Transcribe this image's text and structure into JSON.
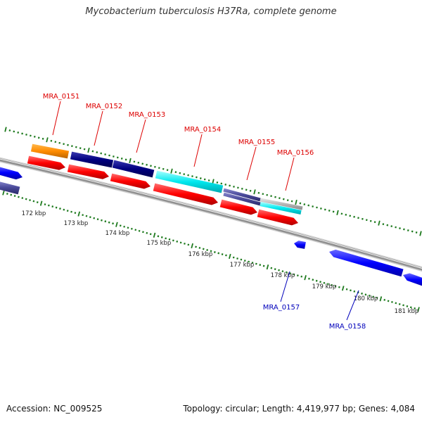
{
  "title": "Mycobacterium tuberculosis H37Ra, complete genome",
  "footer": {
    "accession_label": "Accession: NC_009525",
    "summary": "Topology: circular; Length: 4,419,977 bp; Genes: 4,084"
  },
  "colors": {
    "backbone": "#8f8f8f",
    "forward_label": "#dd0000",
    "reverse_label": "#0000bb",
    "tick": "#1e7a1e",
    "orange": "#ff8c00",
    "navy": "#000080",
    "cyan": "#00e8ee",
    "red": "#ff0000",
    "slate": "#4a4a9a",
    "gray": "#b8b8b8",
    "blue": "#0000ff"
  },
  "scale": {
    "unit": "kbp",
    "labels": [
      "172 kbp",
      "173 kbp",
      "174 kbp",
      "175 kbp",
      "176 kbp",
      "177 kbp",
      "178 kbp",
      "179 kbp",
      "180 kbp",
      "181 kbp"
    ]
  },
  "gene_labels": [
    {
      "text": "MRA_0151",
      "strand": "forward"
    },
    {
      "text": "MRA_0152",
      "strand": "forward"
    },
    {
      "text": "MRA_0153",
      "strand": "forward"
    },
    {
      "text": "MRA_0154",
      "strand": "forward"
    },
    {
      "text": "MRA_0155",
      "strand": "forward"
    },
    {
      "text": "MRA_0156",
      "strand": "forward"
    },
    {
      "text": "MRA_0157",
      "strand": "reverse"
    },
    {
      "text": "MRA_0158",
      "strand": "reverse"
    }
  ]
}
